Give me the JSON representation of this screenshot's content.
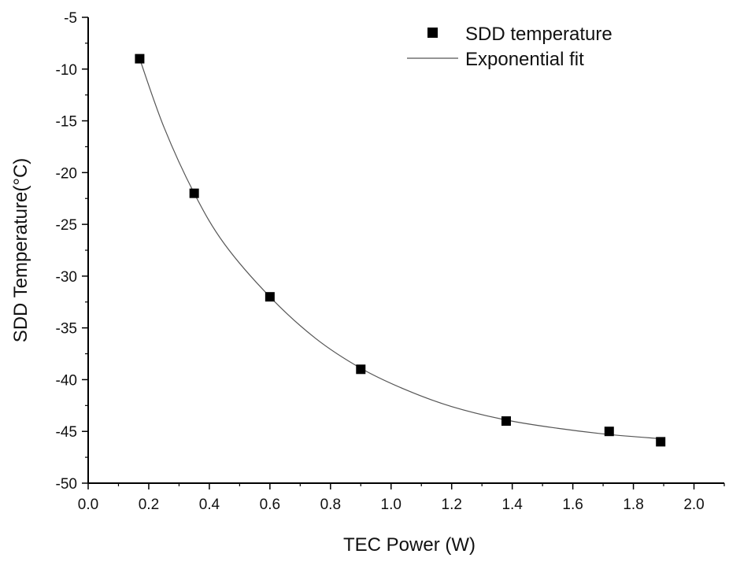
{
  "chart_data": {
    "type": "scatter",
    "title": "",
    "xlabel": "TEC Power (W)",
    "ylabel": "SDD Temperature(°C)",
    "xlim": [
      0.0,
      2.1
    ],
    "ylim": [
      -50,
      -5
    ],
    "xticks": [
      "0.0",
      "0.2",
      "0.4",
      "0.6",
      "0.8",
      "1.0",
      "1.2",
      "1.4",
      "1.6",
      "1.8",
      "2.0"
    ],
    "yticks": [
      "-5",
      "-10",
      "-15",
      "-20",
      "-25",
      "-30",
      "-35",
      "-40",
      "-45",
      "-50"
    ],
    "grid": false,
    "legend_position": "top-right",
    "series": [
      {
        "name": "SDD temperature",
        "kind": "markers",
        "marker": "square",
        "color": "#000000",
        "x": [
          0.17,
          0.35,
          0.6,
          0.9,
          1.38,
          1.72,
          1.89
        ],
        "y": [
          -9,
          -22,
          -32,
          -39,
          -44,
          -45,
          -46
        ]
      },
      {
        "name": "Exponential fit",
        "kind": "line",
        "color": "#555555",
        "x": [
          0.17,
          0.25,
          0.35,
          0.45,
          0.6,
          0.75,
          0.9,
          1.05,
          1.2,
          1.38,
          1.55,
          1.72,
          1.89
        ],
        "y": [
          -9.0,
          -15.6,
          -22.0,
          -26.9,
          -32.0,
          -36.0,
          -38.9,
          -41.0,
          -42.6,
          -43.9,
          -44.7,
          -45.3,
          -45.7
        ]
      }
    ]
  }
}
